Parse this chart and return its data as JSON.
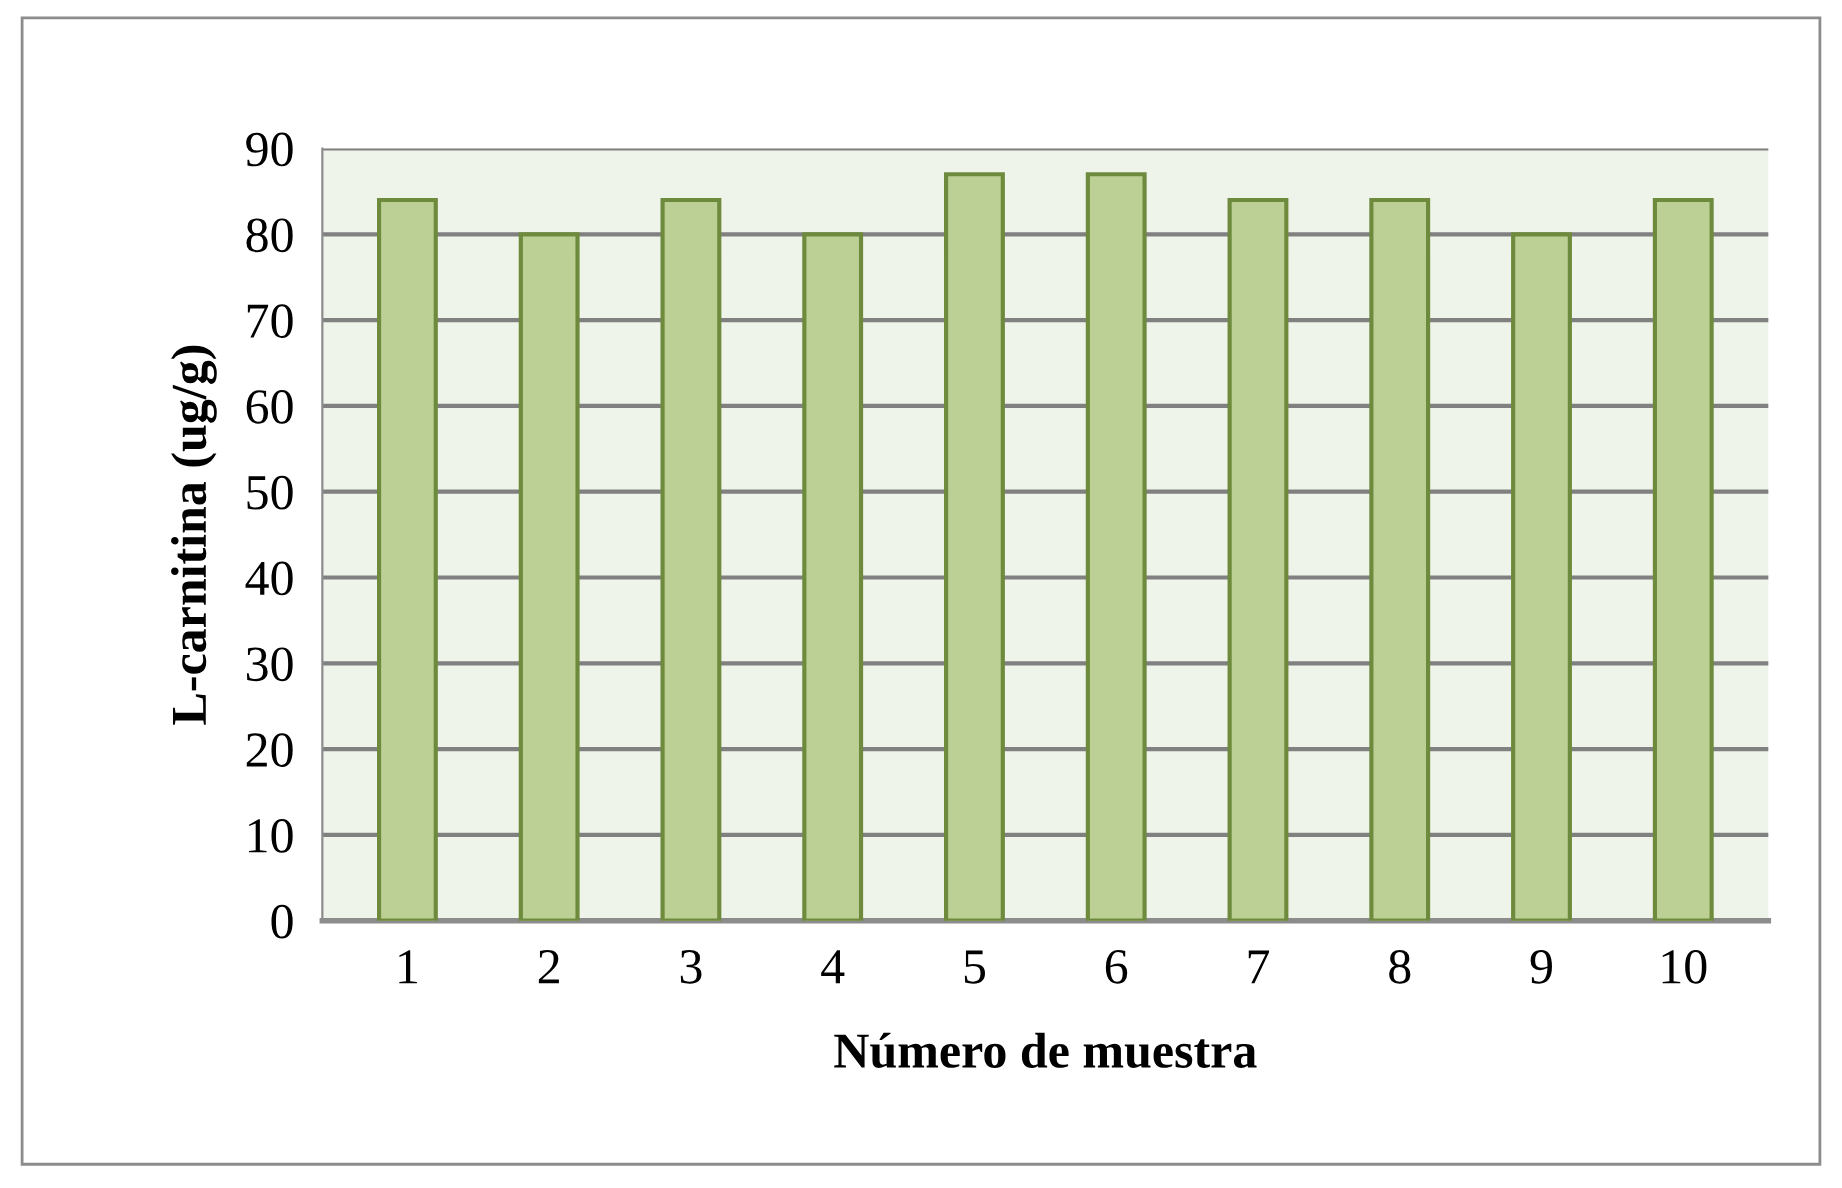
{
  "chart_data": {
    "type": "bar",
    "xlabel": "Número de muestra",
    "ylabel": "L-carnitina (ug/g)",
    "categories": [
      "1",
      "2",
      "3",
      "4",
      "5",
      "6",
      "7",
      "8",
      "9",
      "10"
    ],
    "values": [
      84,
      80,
      84,
      80,
      87,
      87,
      84,
      84,
      80,
      84
    ],
    "color": "#bcd096",
    "ylim": [
      0,
      90
    ],
    "yticks": [
      0,
      10,
      20,
      30,
      40,
      50,
      60,
      70,
      80,
      90
    ],
    "grid": "y"
  }
}
